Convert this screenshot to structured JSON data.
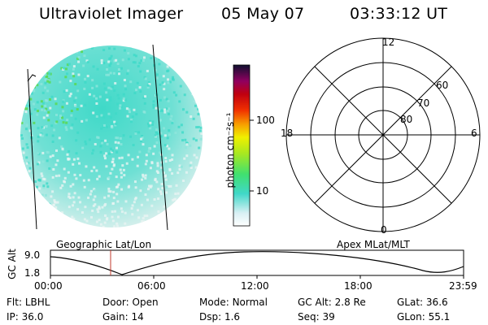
{
  "header": {
    "instrument": "Ultraviolet Imager",
    "date": "05 May 07",
    "time": "03:33:12 UT"
  },
  "colorbar": {
    "unit_label": "photon cm⁻²s⁻¹",
    "ticks": [
      "100",
      "10"
    ]
  },
  "image_panel": {
    "caption": "Geographic Lat/Lon"
  },
  "polar_plot": {
    "caption": "Apex MLat/MLT",
    "mlt_labels": {
      "top": "12",
      "left": "18",
      "right": "6",
      "bottom": "0"
    },
    "lat_labels": [
      "60",
      "70",
      "80"
    ]
  },
  "timeline": {
    "ylabel": "GC Alt",
    "y_ticks": [
      "9.0",
      "1.8"
    ],
    "x_ticks": [
      "00:00",
      "06:00",
      "12:00",
      "18:00",
      "23:59"
    ],
    "marker_time": "03:33:12"
  },
  "footer": {
    "row1": [
      {
        "key": "Flt:",
        "value": "LBHL"
      },
      {
        "key": "Door:",
        "value": "Open"
      },
      {
        "key": "Mode:",
        "value": "Normal"
      },
      {
        "key": "GC Alt:",
        "value": "2.8 Re"
      },
      {
        "key": "GLat:",
        "value": "36.6"
      }
    ],
    "row2": [
      {
        "key": "IP:",
        "value": "36.0"
      },
      {
        "key": "Gain:",
        "value": "14"
      },
      {
        "key": "Dsp:",
        "value": "1.6"
      },
      {
        "key": "Seq:",
        "value": "39"
      },
      {
        "key": "GLon:",
        "value": "55.1"
      }
    ]
  },
  "colors": {
    "aurora_low": "#e8f4f2",
    "aurora_mid": "#3fd9c8",
    "aurora_high": "#5ad84a",
    "marker": "#c0392b"
  }
}
